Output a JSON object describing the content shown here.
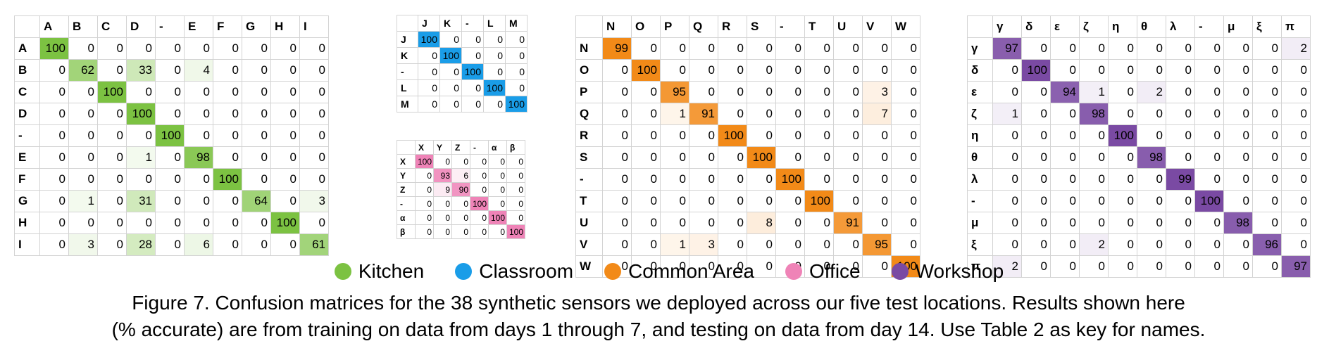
{
  "colors": {
    "kitchen": "#7cc242",
    "classroom": "#1a9de8",
    "common_area": "#f28a18",
    "office": "#ef83b7",
    "workshop": "#7a4aa3"
  },
  "matrices": [
    {
      "category": "kitchen",
      "labels": [
        "A",
        "B",
        "C",
        "D",
        "-",
        "E",
        "F",
        "G",
        "H",
        "I"
      ],
      "rows": [
        [
          100,
          0,
          0,
          0,
          0,
          0,
          0,
          0,
          0,
          0
        ],
        [
          0,
          62,
          0,
          33,
          0,
          4,
          0,
          0,
          0,
          0
        ],
        [
          0,
          0,
          100,
          0,
          0,
          0,
          0,
          0,
          0,
          0
        ],
        [
          0,
          0,
          0,
          100,
          0,
          0,
          0,
          0,
          0,
          0
        ],
        [
          0,
          0,
          0,
          0,
          100,
          0,
          0,
          0,
          0,
          0
        ],
        [
          0,
          0,
          0,
          1,
          0,
          98,
          0,
          0,
          0,
          0
        ],
        [
          0,
          0,
          0,
          0,
          0,
          0,
          100,
          0,
          0,
          0
        ],
        [
          0,
          1,
          0,
          31,
          0,
          0,
          0,
          64,
          0,
          3
        ],
        [
          0,
          0,
          0,
          0,
          0,
          0,
          0,
          0,
          100,
          0
        ],
        [
          0,
          3,
          0,
          28,
          0,
          6,
          0,
          0,
          0,
          61
        ]
      ]
    },
    {
      "category": "classroom",
      "labels": [
        "J",
        "K",
        "-",
        "L",
        "M"
      ],
      "rows": [
        [
          100,
          0,
          0,
          0,
          0
        ],
        [
          0,
          100,
          0,
          0,
          0
        ],
        [
          0,
          0,
          100,
          0,
          0
        ],
        [
          0,
          0,
          0,
          100,
          0
        ],
        [
          0,
          0,
          0,
          0,
          100
        ]
      ]
    },
    {
      "category": "office",
      "labels": [
        "X",
        "Y",
        "Z",
        "-",
        "α",
        "β"
      ],
      "rows": [
        [
          100,
          0,
          0,
          0,
          0,
          0
        ],
        [
          0,
          93,
          6,
          0,
          0,
          0
        ],
        [
          0,
          9,
          90,
          0,
          0,
          0
        ],
        [
          0,
          0,
          0,
          100,
          0,
          0
        ],
        [
          0,
          0,
          0,
          0,
          100,
          0
        ],
        [
          0,
          0,
          0,
          0,
          0,
          100
        ]
      ]
    },
    {
      "category": "common_area",
      "labels": [
        "N",
        "O",
        "P",
        "Q",
        "R",
        "S",
        "-",
        "T",
        "U",
        "V",
        "W"
      ],
      "rows": [
        [
          99,
          0,
          0,
          0,
          0,
          0,
          0,
          0,
          0,
          0,
          0
        ],
        [
          0,
          100,
          0,
          0,
          0,
          0,
          0,
          0,
          0,
          0,
          0
        ],
        [
          0,
          0,
          95,
          0,
          0,
          0,
          0,
          0,
          0,
          3,
          0
        ],
        [
          0,
          0,
          1,
          91,
          0,
          0,
          0,
          0,
          0,
          7,
          0
        ],
        [
          0,
          0,
          0,
          0,
          100,
          0,
          0,
          0,
          0,
          0,
          0
        ],
        [
          0,
          0,
          0,
          0,
          0,
          100,
          0,
          0,
          0,
          0,
          0
        ],
        [
          0,
          0,
          0,
          0,
          0,
          0,
          100,
          0,
          0,
          0,
          0
        ],
        [
          0,
          0,
          0,
          0,
          0,
          0,
          0,
          100,
          0,
          0,
          0
        ],
        [
          0,
          0,
          0,
          0,
          0,
          8,
          0,
          0,
          91,
          0,
          0
        ],
        [
          0,
          0,
          1,
          3,
          0,
          0,
          0,
          0,
          0,
          95,
          0
        ],
        [
          0,
          0,
          0,
          0,
          0,
          0,
          0,
          0,
          0,
          0,
          100
        ]
      ]
    },
    {
      "category": "workshop",
      "labels": [
        "γ",
        "δ",
        "ε",
        "ζ",
        "η",
        "θ",
        "λ",
        "-",
        "μ",
        "ξ",
        "π"
      ],
      "rows": [
        [
          97,
          0,
          0,
          0,
          0,
          0,
          0,
          0,
          0,
          0,
          2
        ],
        [
          0,
          100,
          0,
          0,
          0,
          0,
          0,
          0,
          0,
          0,
          0
        ],
        [
          0,
          0,
          94,
          1,
          0,
          2,
          0,
          0,
          0,
          0,
          0
        ],
        [
          1,
          0,
          0,
          98,
          0,
          0,
          0,
          0,
          0,
          0,
          0
        ],
        [
          0,
          0,
          0,
          0,
          100,
          0,
          0,
          0,
          0,
          0,
          0
        ],
        [
          0,
          0,
          0,
          0,
          0,
          98,
          0,
          0,
          0,
          0,
          0
        ],
        [
          0,
          0,
          0,
          0,
          0,
          0,
          99,
          0,
          0,
          0,
          0
        ],
        [
          0,
          0,
          0,
          0,
          0,
          0,
          0,
          100,
          0,
          0,
          0
        ],
        [
          0,
          0,
          0,
          0,
          0,
          0,
          0,
          0,
          98,
          0,
          0
        ],
        [
          0,
          0,
          0,
          2,
          0,
          0,
          0,
          0,
          0,
          96,
          0
        ],
        [
          2,
          0,
          0,
          0,
          0,
          0,
          0,
          0,
          0,
          0,
          97
        ]
      ]
    }
  ],
  "legend": [
    {
      "label": "Kitchen",
      "color_key": "kitchen"
    },
    {
      "label": "Classroom",
      "color_key": "classroom"
    },
    {
      "label": "Common Area",
      "color_key": "common_area"
    },
    {
      "label": "Office",
      "color_key": "office"
    },
    {
      "label": "Workshop",
      "color_key": "workshop"
    }
  ],
  "caption": {
    "line1": "Figure 7. Confusion matrices for the 38 synthetic sensors we deployed across our five test locations. Results shown here",
    "line2": "(% accurate) are from training on data from days 1 through 7, and testing on data from day 14. Use Table 2 as key for names."
  }
}
